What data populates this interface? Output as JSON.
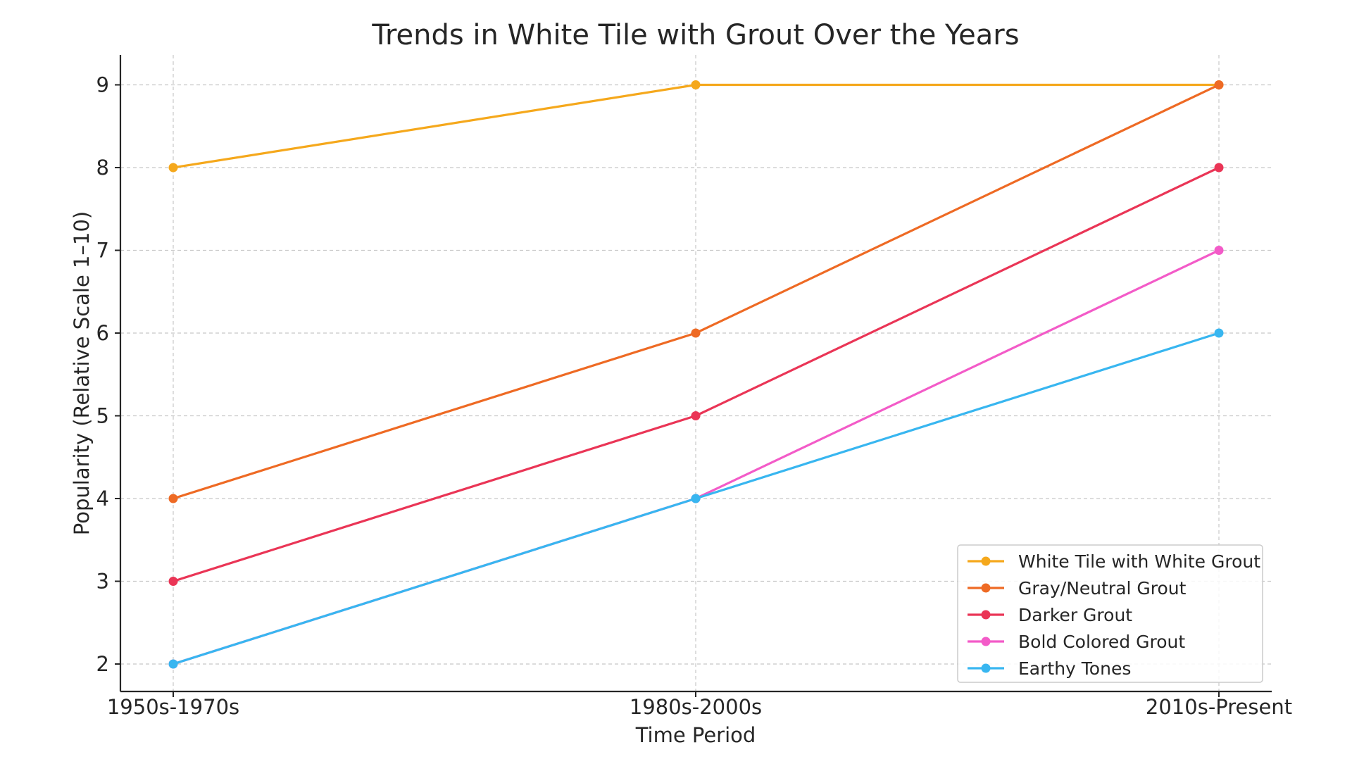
{
  "chart_data": {
    "type": "line",
    "title": "Trends in White Tile with Grout Over the Years",
    "xlabel": "Time Period",
    "ylabel": "Popularity (Relative Scale 1–10)",
    "categories": [
      "1950s-1970s",
      "1980s-2000s",
      "2010s-Present"
    ],
    "ylim": [
      1.65,
      9.35
    ],
    "yticks": [
      2,
      3,
      4,
      5,
      6,
      7,
      8,
      9
    ],
    "grid": true,
    "legend_position": "lower-right",
    "series": [
      {
        "name": "White Tile with White Grout",
        "color": "#F5A81C",
        "values": [
          8,
          9,
          9
        ]
      },
      {
        "name": "Gray/Neutral Grout",
        "color": "#EE6A24",
        "values": [
          4,
          6,
          9
        ]
      },
      {
        "name": "Darker Grout",
        "color": "#EA3556",
        "values": [
          3,
          5,
          8
        ]
      },
      {
        "name": "Bold Colored Grout",
        "color": "#F35BC8",
        "values": [
          2,
          4,
          7
        ]
      },
      {
        "name": "Earthy Tones",
        "color": "#38B6F0",
        "values": [
          2,
          4,
          6
        ]
      }
    ]
  }
}
